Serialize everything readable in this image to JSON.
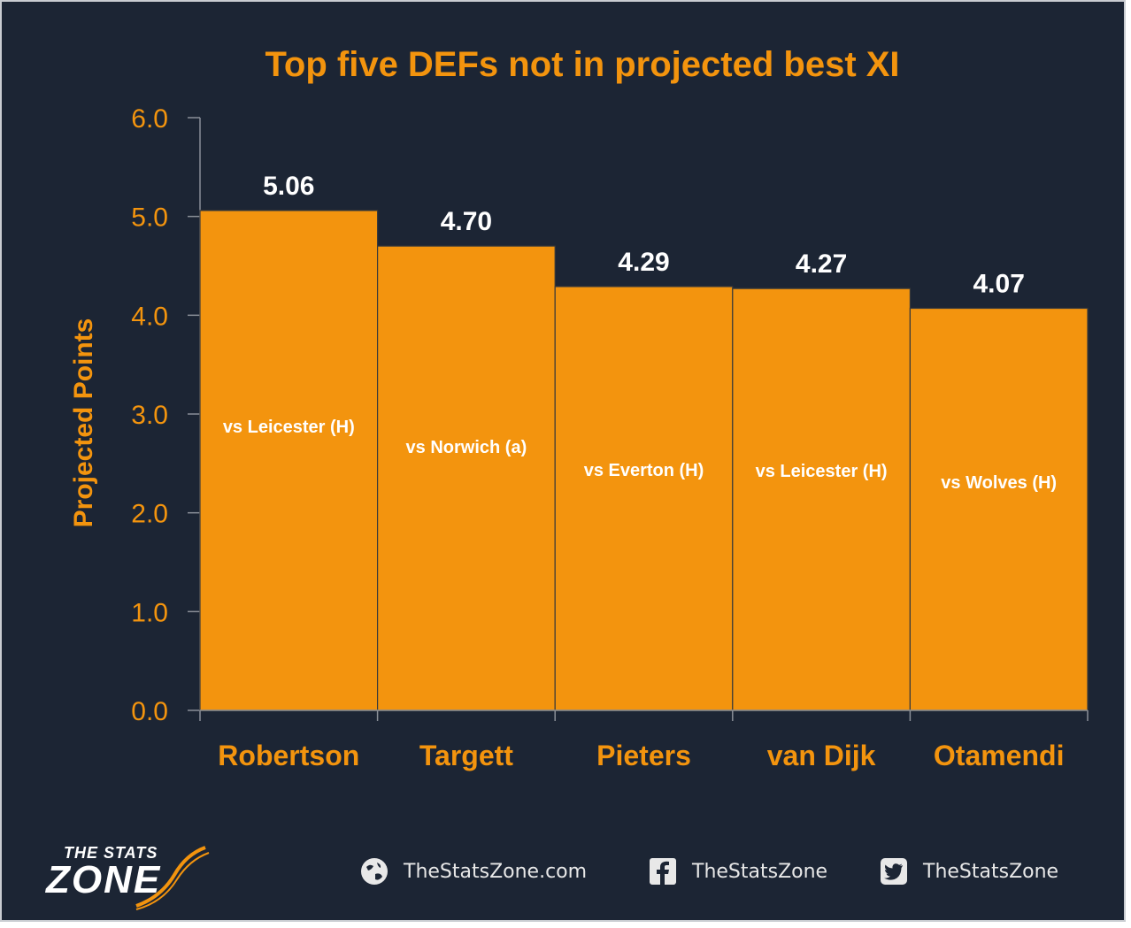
{
  "chart_data": {
    "type": "bar",
    "title": "Top five DEFs not in projected best XI",
    "ylabel": "Projected Points",
    "xlabel": "",
    "ylim": [
      0,
      6
    ],
    "yticks": [
      "0.0",
      "1.0",
      "2.0",
      "3.0",
      "4.0",
      "5.0",
      "6.0"
    ],
    "categories": [
      "Robertson",
      "Targett",
      "Pieters",
      "van Dijk",
      "Otamendi"
    ],
    "values": [
      5.06,
      4.7,
      4.29,
      4.27,
      4.07
    ],
    "value_labels": [
      "5.06",
      "4.70",
      "4.29",
      "4.27",
      "4.07"
    ],
    "fixtures": [
      "vs Leicester (H)",
      "vs Norwich (a)",
      "vs Everton (H)",
      "vs Leicester (H)",
      "vs Wolves (H)"
    ],
    "bar_color": "#f3940e",
    "background_color": "#1c2534",
    "grid": false
  },
  "footer": {
    "logo_top": "THE STATS",
    "logo_bottom": "ZONE",
    "website": "TheStatsZone.com",
    "facebook": "TheStatsZone",
    "twitter": "TheStatsZone",
    "icons": [
      "globe-icon",
      "facebook-icon",
      "twitter-icon"
    ]
  }
}
